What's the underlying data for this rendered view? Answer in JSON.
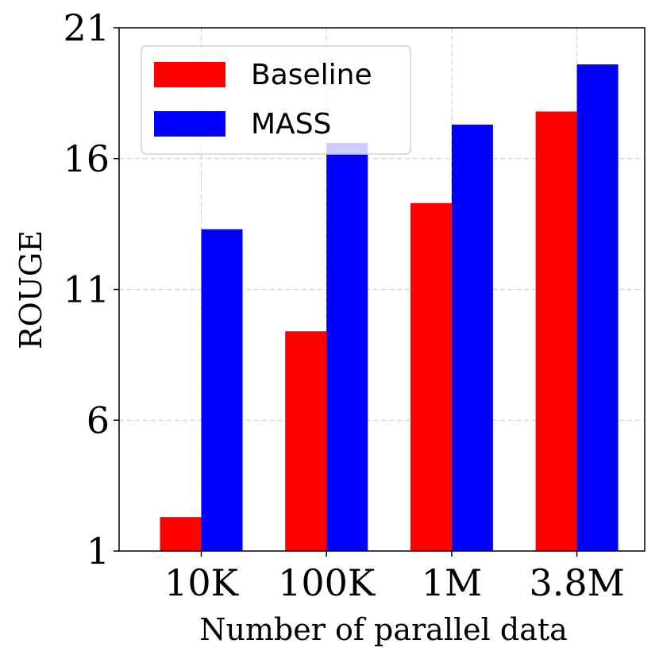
{
  "chart_data": {
    "type": "bar",
    "title": "",
    "xlabel": "Number of parallel data",
    "ylabel": "ROUGE",
    "categories": [
      "10K",
      "100K",
      "1M",
      "3.8M"
    ],
    "series": [
      {
        "name": "Baseline",
        "color": "#ff0000",
        "values": [
          2.3,
          9.4,
          14.3,
          17.8
        ]
      },
      {
        "name": "MASS",
        "color": "#0000ff",
        "values": [
          13.3,
          16.6,
          17.3,
          19.6
        ]
      }
    ],
    "ylim": [
      1,
      21
    ],
    "yticks": [
      "1",
      "6",
      "11",
      "16",
      "21"
    ],
    "grid": true,
    "legend_position": "top-left"
  }
}
